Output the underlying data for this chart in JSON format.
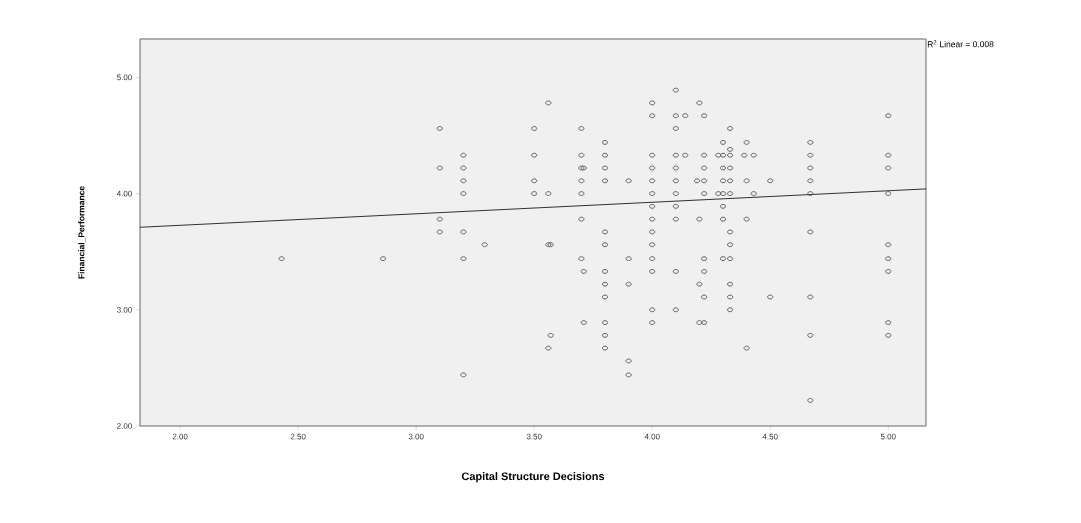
{
  "chart_data": {
    "type": "scatter",
    "xlabel": "Capital Structure Decisions",
    "ylabel": "Financial_Performance",
    "annotations": [
      "R$^{2}$ Linear = 0.008"
    ],
    "xlim": [
      1.83,
      5.16
    ],
    "ylim": [
      2.0,
      5.33
    ],
    "xticks": [
      {
        "value": 2,
        "label": "2.00"
      },
      {
        "value": 2.5,
        "label": "2.50"
      },
      {
        "value": 3,
        "label": "3.00"
      },
      {
        "value": 3.5,
        "label": "3.50"
      },
      {
        "value": 4,
        "label": "4.00"
      },
      {
        "value": 4.5,
        "label": "4.50"
      },
      {
        "value": 5,
        "label": "5.00"
      }
    ],
    "yticks": [
      {
        "value": 2,
        "label": "2.00"
      },
      {
        "value": 3,
        "label": "3.00"
      },
      {
        "value": 4,
        "label": "4.00"
      },
      {
        "value": 5,
        "label": "5.00"
      }
    ],
    "grid": false,
    "series": [
      {
        "color": "#505050",
        "marker": "circle",
        "x": [
          2.43,
          2.86,
          3.1,
          3.1,
          3.1,
          3.1,
          3.2,
          3.2,
          3.2,
          3.2,
          3.2,
          3.2,
          3.2,
          3.29,
          3.5,
          3.5,
          3.5,
          3.5,
          3.56,
          3.56,
          3.56,
          3.56,
          3.57,
          3.57,
          3.7,
          3.7,
          3.7,
          3.7,
          3.7,
          3.7,
          3.7,
          3.71,
          3.71,
          3.71,
          3.8,
          3.8,
          3.8,
          3.8,
          3.8,
          3.8,
          3.8,
          3.8,
          3.8,
          3.8,
          3.8,
          3.8,
          3.9,
          3.9,
          3.9,
          3.9,
          3.9,
          4.0,
          4.0,
          4.0,
          4.0,
          4.0,
          4.0,
          4.0,
          4.0,
          4.0,
          4.0,
          4.0,
          4.0,
          4.0,
          4.0,
          4.1,
          4.1,
          4.1,
          4.1,
          4.1,
          4.1,
          4.1,
          4.1,
          4.1,
          4.1,
          4.1,
          4.14,
          4.14,
          4.19,
          4.2,
          4.2,
          4.2,
          4.2,
          4.22,
          4.22,
          4.22,
          4.22,
          4.22,
          4.22,
          4.22,
          4.22,
          4.22,
          4.28,
          4.28,
          4.3,
          4.3,
          4.3,
          4.3,
          4.3,
          4.3,
          4.3,
          4.3,
          4.33,
          4.33,
          4.33,
          4.33,
          4.33,
          4.33,
          4.33,
          4.33,
          4.33,
          4.33,
          4.33,
          4.33,
          4.4,
          4.4,
          4.4,
          4.4,
          4.39,
          4.43,
          4.43,
          4.5,
          4.5,
          4.67,
          4.67,
          4.67,
          4.67,
          4.67,
          4.67,
          4.67,
          4.67,
          4.67,
          5.0,
          5.0,
          5.0,
          5.0,
          5.0,
          5.0,
          5.0,
          5.0,
          5.0
        ],
        "values": [
          3.44,
          3.44,
          4.56,
          4.22,
          3.78,
          3.67,
          4.33,
          4.22,
          4.11,
          4.0,
          3.67,
          3.44,
          2.44,
          3.56,
          4.56,
          4.33,
          4.11,
          4.0,
          4.78,
          4.0,
          3.56,
          2.67,
          3.56,
          2.78,
          4.56,
          4.33,
          4.22,
          4.11,
          4.0,
          3.78,
          3.44,
          4.22,
          3.33,
          2.89,
          4.44,
          4.33,
          4.22,
          4.11,
          3.67,
          3.56,
          3.33,
          3.22,
          3.11,
          2.89,
          2.78,
          2.67,
          4.11,
          3.44,
          3.22,
          2.56,
          2.44,
          4.78,
          4.67,
          4.33,
          4.22,
          4.11,
          4.0,
          3.89,
          3.78,
          3.67,
          3.56,
          3.44,
          3.33,
          3.0,
          2.89,
          4.89,
          4.67,
          4.56,
          4.33,
          4.22,
          4.11,
          4.0,
          3.89,
          3.78,
          3.33,
          3.0,
          4.67,
          4.33,
          4.11,
          4.78,
          3.78,
          3.22,
          2.89,
          4.67,
          4.33,
          4.22,
          4.11,
          4.0,
          3.44,
          3.33,
          3.11,
          2.89,
          4.33,
          4.0,
          4.44,
          4.33,
          4.22,
          4.11,
          4.0,
          3.89,
          3.78,
          3.44,
          4.56,
          4.38,
          4.33,
          4.22,
          4.11,
          4.0,
          3.67,
          3.56,
          3.44,
          3.22,
          3.11,
          3.0,
          4.44,
          4.11,
          3.78,
          2.67,
          4.33,
          4.33,
          4.0,
          4.11,
          3.11,
          4.44,
          4.33,
          4.22,
          4.11,
          4.0,
          3.67,
          3.11,
          2.78,
          2.22,
          4.67,
          4.33,
          4.22,
          4.0,
          3.56,
          3.44,
          3.33,
          2.89,
          2.78
        ]
      },
      {
        "type": "line",
        "color": "#000000",
        "marker": "none",
        "x": [
          1.83,
          5.16
        ],
        "values": [
          3.71,
          4.04
        ]
      }
    ]
  }
}
